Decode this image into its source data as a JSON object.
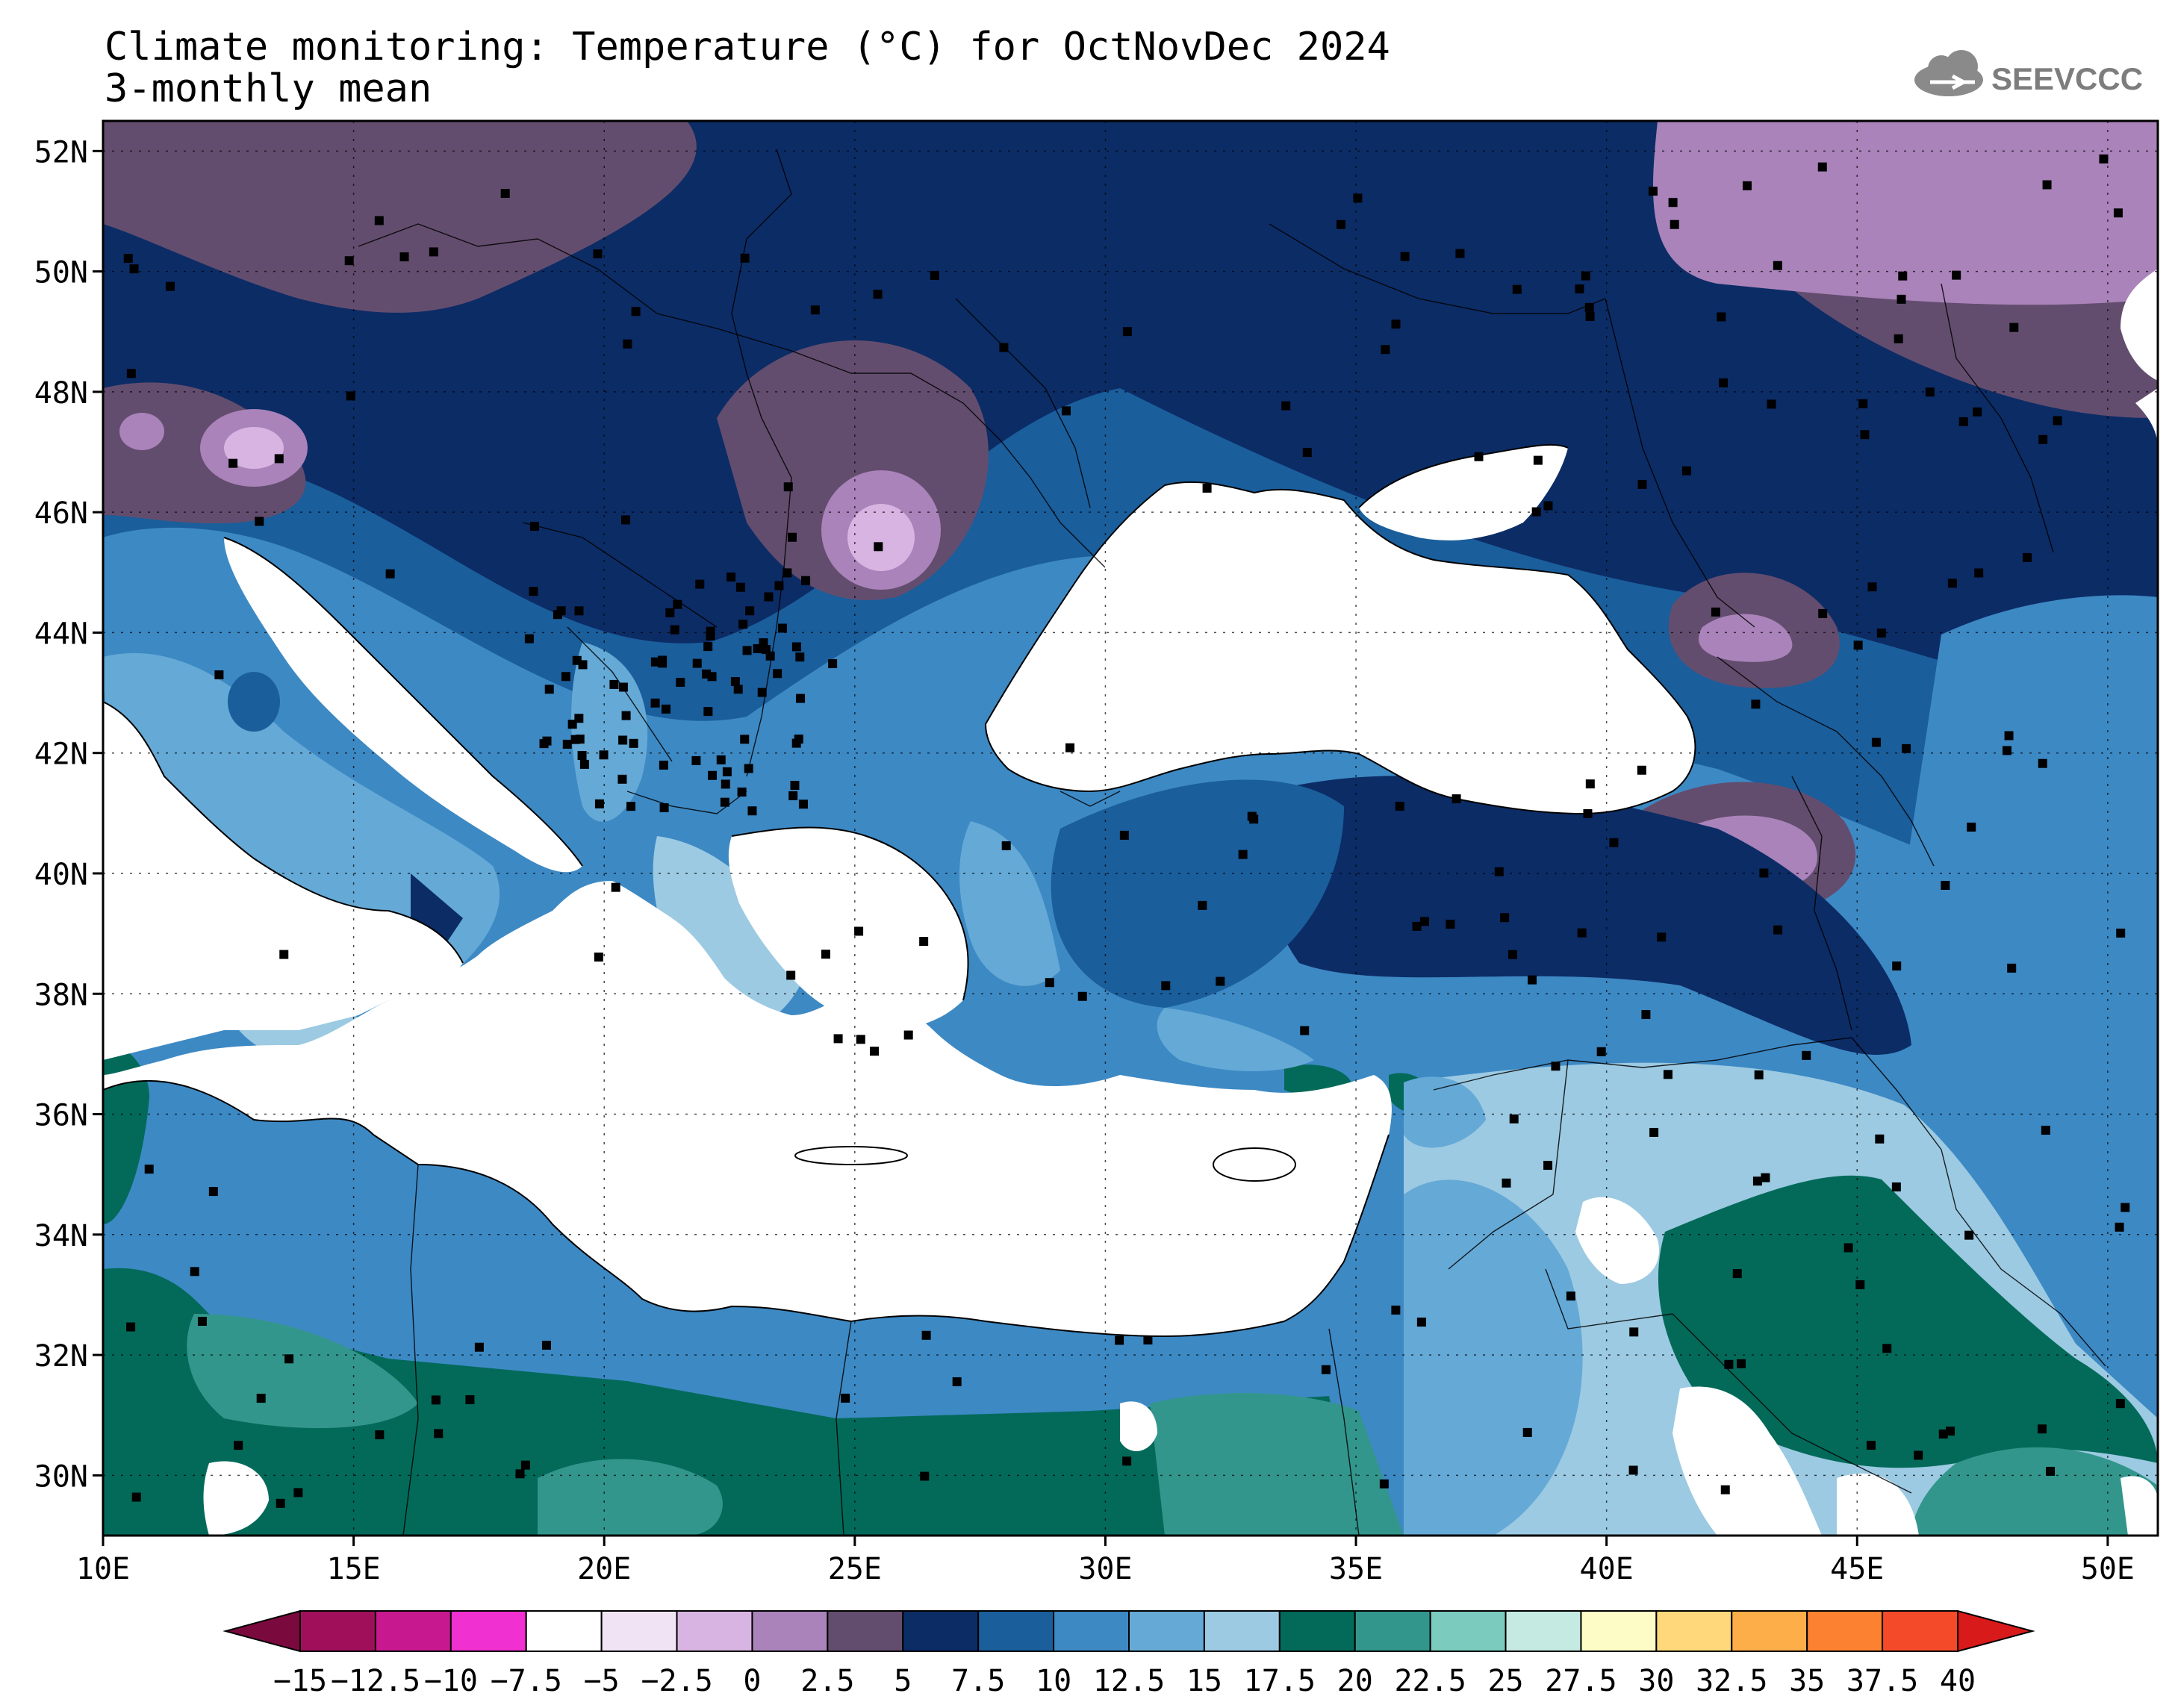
{
  "title_line1": "Climate monitoring: Temperature (°C) for OctNovDec 2024",
  "title_line2": "3-monthly mean",
  "logo_text": "SEEVCCC",
  "map": {
    "lon_range": [
      10,
      51
    ],
    "lat_range": [
      29,
      52.5
    ],
    "lat_ticks": [
      "52N",
      "50N",
      "48N",
      "46N",
      "44N",
      "42N",
      "40N",
      "38N",
      "36N",
      "34N",
      "32N",
      "30N"
    ],
    "lat_values": [
      52,
      50,
      48,
      46,
      44,
      42,
      40,
      38,
      36,
      34,
      32,
      30
    ],
    "lon_ticks": [
      "10E",
      "15E",
      "20E",
      "25E",
      "30E",
      "35E",
      "40E",
      "45E",
      "50E"
    ],
    "lon_values": [
      10,
      15,
      20,
      25,
      30,
      35,
      40,
      45,
      50
    ],
    "gridlines": "dotted",
    "station_markers": "black squares",
    "sea_fill": "#ffffff"
  },
  "colorbar": {
    "labels": [
      "−15",
      "−12.5",
      "−10",
      "−7.5",
      "−5",
      "−2.5",
      "0",
      "2.5",
      "5",
      "7.5",
      "10",
      "12.5",
      "15",
      "17.5",
      "20",
      "22.5",
      "25",
      "27.5",
      "30",
      "32.5",
      "35",
      "37.5",
      "40"
    ],
    "colors": [
      "#a0105a",
      "#c81890",
      "#f030d0",
      "#ffffff",
      "#f0e4f4",
      "#d8b4e2",
      "#a983b9",
      "#634d6e",
      "#0c2c66",
      "#1a5e9c",
      "#3d89c4",
      "#65a9d6",
      "#9ccae2",
      "#036a5a",
      "#33968c",
      "#7bcbbf",
      "#c5eae2",
      "#fefcc6",
      "#fed87a",
      "#feae48",
      "#fc8232",
      "#f54a2a"
    ],
    "under_color": "#7a0a3e",
    "over_color": "#d81a1a"
  }
}
